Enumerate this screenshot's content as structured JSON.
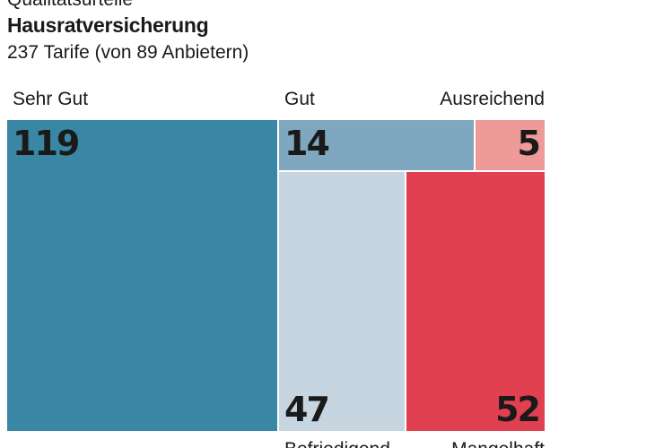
{
  "header": {
    "kicker": "Qualitätsurteile",
    "title": "Hausratversicherung",
    "subtitle": "237 Tarife (von 89 Anbietern)"
  },
  "chart_data": {
    "type": "treemap",
    "title": "Hausratversicherung",
    "subtitle": "237 Tarife (von 89 Anbietern)",
    "total": 237,
    "categories": [
      "Sehr Gut",
      "Gut",
      "Ausreichend",
      "Befriedigend",
      "Mangelhaft"
    ],
    "values": [
      119,
      14,
      5,
      47,
      52
    ],
    "colors": [
      "#3a86a5",
      "#7fa8c0",
      "#ee9a98",
      "#c7d5e0",
      "#e14050"
    ]
  }
}
